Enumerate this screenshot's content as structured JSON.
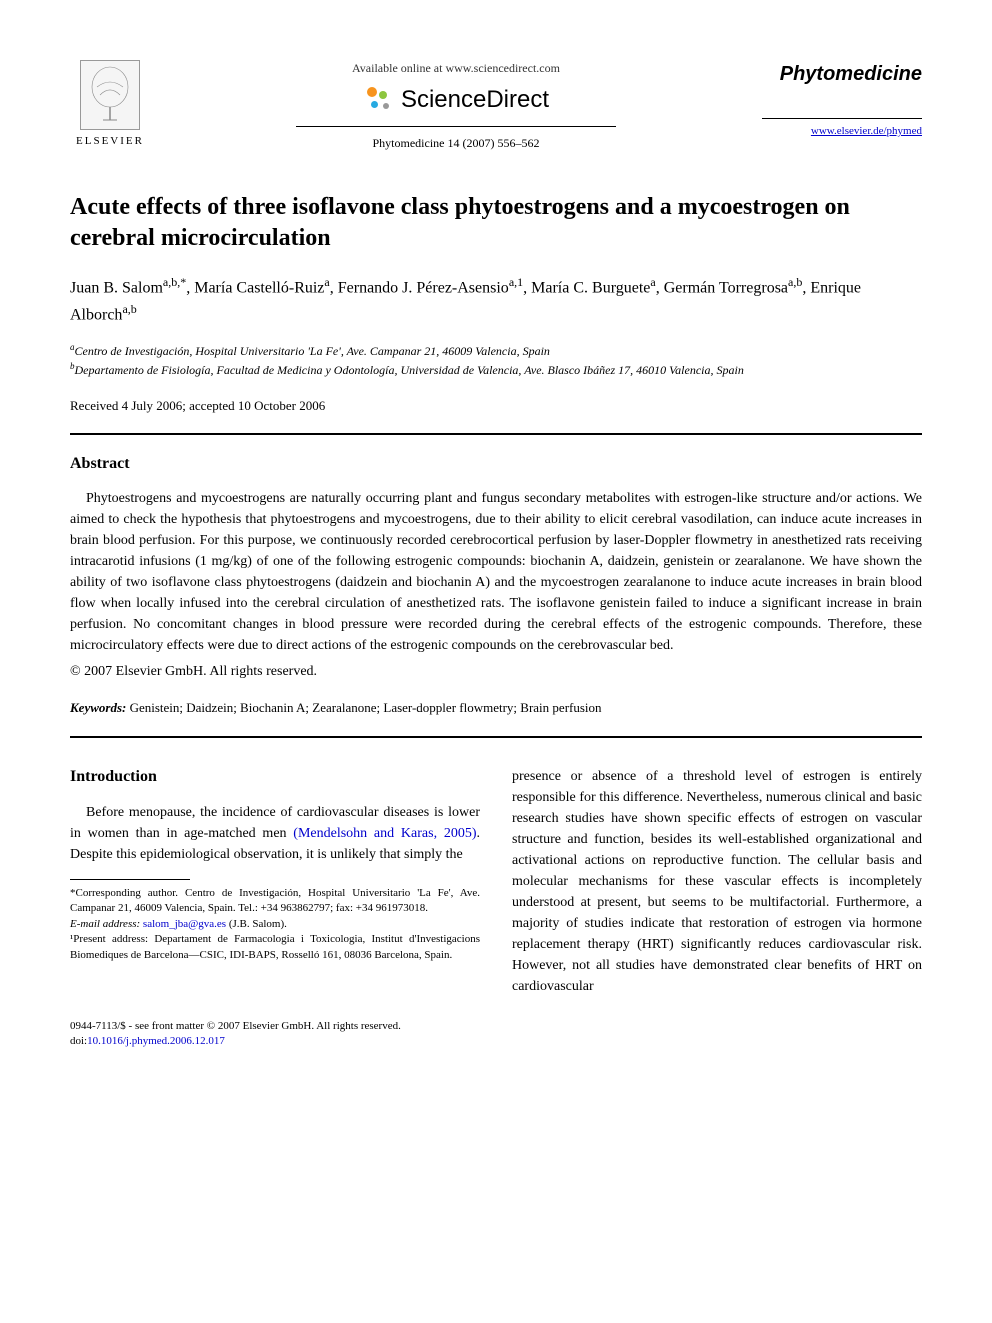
{
  "header": {
    "publisher_name": "ELSEVIER",
    "available_text": "Available online at www.sciencedirect.com",
    "sciencedirect_text": "ScienceDirect",
    "citation": "Phytomedicine 14 (2007) 556–562",
    "journal_name": "Phytomedicine",
    "journal_url": "www.elsevier.de/phymed"
  },
  "title": "Acute effects of three isoflavone class phytoestrogens and a mycoestrogen on cerebral microcirculation",
  "authors_html": "Juan B. Salom<sup>a,b,*</sup>, María Castelló-Ruiz<sup>a</sup>, Fernando J. Pérez-Asensio<sup>a,1</sup>, María C. Burguete<sup>a</sup>, Germán Torregrosa<sup>a,b</sup>, Enrique Alborch<sup>a,b</sup>",
  "affiliations": {
    "a": "Centro de Investigación, Hospital Universitario 'La Fe', Ave. Campanar 21, 46009 Valencia, Spain",
    "b": "Departamento de Fisiología, Facultad de Medicina y Odontología, Universidad de Valencia, Ave. Blasco Ibáñez 17, 46010 Valencia, Spain"
  },
  "dates": "Received 4 July 2006; accepted 10 October 2006",
  "abstract": {
    "heading": "Abstract",
    "text": "Phytoestrogens and mycoestrogens are naturally occurring plant and fungus secondary metabolites with estrogen-like structure and/or actions. We aimed to check the hypothesis that phytoestrogens and mycoestrogens, due to their ability to elicit cerebral vasodilation, can induce acute increases in brain blood perfusion. For this purpose, we continuously recorded cerebrocortical perfusion by laser-Doppler flowmetry in anesthetized rats receiving intracarotid infusions (1 mg/kg) of one of the following estrogenic compounds: biochanin A, daidzein, genistein or zearalanone. We have shown the ability of two isoflavone class phytoestrogens (daidzein and biochanin A) and the mycoestrogen zearalanone to induce acute increases in brain blood flow when locally infused into the cerebral circulation of anesthetized rats. The isoflavone genistein failed to induce a significant increase in brain perfusion. No concomitant changes in blood pressure were recorded during the cerebral effects of the estrogenic compounds. Therefore, these microcirculatory effects were due to direct actions of the estrogenic compounds on the cerebrovascular bed.",
    "copyright": "© 2007 Elsevier GmbH. All rights reserved."
  },
  "keywords": {
    "label": "Keywords:",
    "text": "Genistein; Daidzein; Biochanin A; Zearalanone; Laser-doppler flowmetry; Brain perfusion"
  },
  "intro": {
    "heading": "Introduction",
    "left_pre": "Before menopause, the incidence of cardiovascular diseases is lower in women than in age-matched men ",
    "left_cite": "(Mendelsohn and Karas, 2005)",
    "left_post": ". Despite this epidemiological observation, it is unlikely that simply the",
    "right": "presence or absence of a threshold level of estrogen is entirely responsible for this difference. Nevertheless, numerous clinical and basic research studies have shown specific effects of estrogen on vascular structure and function, besides its well-established organizational and activational actions on reproductive function. The cellular basis and molecular mechanisms for these vascular effects is incompletely understood at present, but seems to be multifactorial. Furthermore, a majority of studies indicate that restoration of estrogen via hormone replacement therapy (HRT) significantly reduces cardiovascular risk. However, not all studies have demonstrated clear benefits of HRT on cardiovascular"
  },
  "footnotes": {
    "corr_label": "*Corresponding author. ",
    "corr_text": "Centro de Investigación, Hospital Universitario 'La Fe', Ave. Campanar 21, 46009 Valencia, Spain. Tel.: +34 963862797; fax: +34 961973018.",
    "email_label": "E-mail address:",
    "email": "salom_jba@gva.es",
    "email_name": "(J.B. Salom).",
    "present_label": "¹Present address:",
    "present_text": "Departament de Farmacologia i Toxicologia, Institut d'Investigacions Biomediques de Barcelona—CSIC, IDI-BAPS, Rosselló 161, 08036 Barcelona, Spain."
  },
  "footer": {
    "line1": "0944-7113/$ - see front matter © 2007 Elsevier GmbH. All rights reserved.",
    "doi_label": "doi:",
    "doi": "10.1016/j.phymed.2006.12.017"
  },
  "colors": {
    "link": "#0000cc",
    "text": "#000000",
    "sd_orange": "#f7941e",
    "sd_green": "#8dc63f",
    "sd_blue": "#27aae1"
  }
}
